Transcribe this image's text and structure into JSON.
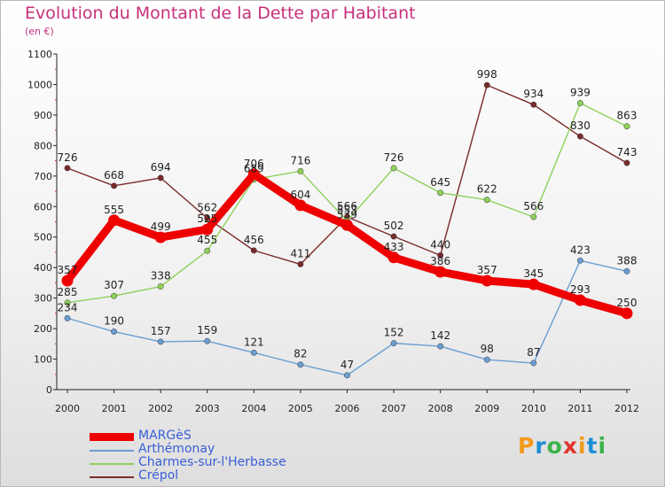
{
  "header": {
    "title": "Evolution du Montant de la Dette par Habitant",
    "unit": "(en €)"
  },
  "logo": {
    "text": "Proxiti",
    "colors": [
      "#f29a1c",
      "#1d8fd6",
      "#3bb34a",
      "#e0342c",
      "#f29a1c",
      "#1d8fd6",
      "#3bb34a"
    ]
  },
  "chart_data": {
    "type": "line",
    "title": "Evolution du Montant de la Dette par Habitant",
    "ylabel": "(en €)",
    "xlabel": "",
    "ylim": [
      0,
      1100
    ],
    "yticks": [
      0,
      100,
      200,
      300,
      400,
      500,
      600,
      700,
      800,
      900,
      1000,
      1100
    ],
    "grid": false,
    "legend": "bottom-left",
    "categories": [
      "2000",
      "2001",
      "2002",
      "2003",
      "2004",
      "2005",
      "2006",
      "2007",
      "2008",
      "2009",
      "2010",
      "2011",
      "2012"
    ],
    "series": [
      {
        "name": "Crépol",
        "color": "#7a2a2a",
        "values": [
          726,
          668,
          694,
          562,
          456,
          411,
          566,
          502,
          440,
          998,
          934,
          830,
          743
        ]
      },
      {
        "name": "Charmes-sur-l'Herbasse",
        "color": "#8fd15a",
        "values": [
          285,
          307,
          338,
          455,
          689,
          716,
          553,
          726,
          645,
          622,
          566,
          939,
          863
        ]
      },
      {
        "name": "Arthémonay",
        "color": "#6a9ed2",
        "values": [
          234,
          190,
          157,
          159,
          121,
          82,
          47,
          152,
          142,
          98,
          87,
          423,
          388
        ]
      },
      {
        "name": "MARGèS",
        "color": "#ee0000",
        "values": [
          357,
          555,
          499,
          525,
          706,
          604,
          539,
          433,
          386,
          357,
          345,
          293,
          250
        ]
      }
    ]
  }
}
